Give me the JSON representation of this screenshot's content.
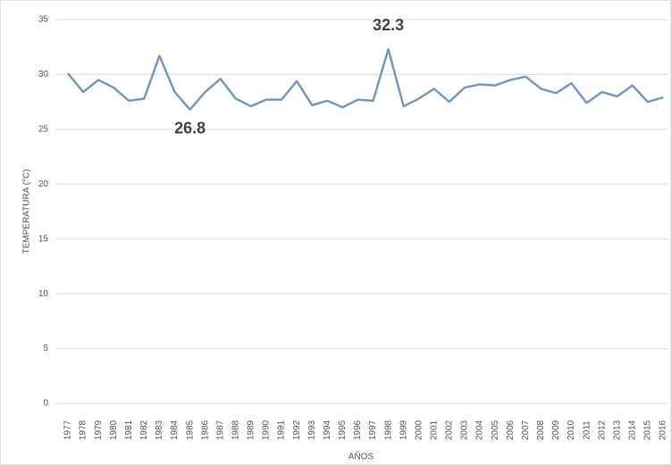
{
  "chart_data": {
    "type": "line",
    "y_label": "TEMPERATURA (°C)",
    "x_label": "AÑOS",
    "categories": [
      "1977",
      "1978",
      "1979",
      "1980",
      "1981",
      "1982",
      "1983",
      "1984",
      "1985",
      "1986",
      "1987",
      "1988",
      "1989",
      "1990",
      "1991",
      "1992",
      "1993",
      "1994",
      "1995",
      "1996",
      "1997",
      "1998",
      "1999",
      "2000",
      "2001",
      "2002",
      "2003",
      "2004",
      "2005",
      "2006",
      "2007",
      "2008",
      "2009",
      "2010",
      "2011",
      "2012",
      "2013",
      "2014",
      "2015",
      "2016"
    ],
    "values": [
      30.1,
      28.4,
      29.5,
      28.8,
      27.6,
      27.8,
      31.7,
      28.4,
      26.8,
      28.4,
      29.6,
      27.8,
      27.1,
      27.7,
      27.7,
      29.4,
      27.2,
      27.6,
      27.0,
      27.7,
      27.6,
      32.3,
      27.1,
      27.8,
      28.7,
      27.5,
      28.8,
      29.1,
      29.0,
      29.5,
      29.8,
      28.7,
      28.3,
      29.2,
      27.4,
      28.4,
      28.0,
      29.0,
      27.5,
      27.9
    ],
    "value_labels": [
      null,
      null,
      null,
      null,
      null,
      null,
      null,
      null,
      "26.8",
      null,
      null,
      null,
      null,
      null,
      null,
      null,
      null,
      null,
      null,
      null,
      null,
      "32.3",
      null,
      null,
      null,
      null,
      null,
      null,
      null,
      null,
      null,
      null,
      null,
      null,
      null,
      null,
      null,
      null,
      null,
      null
    ],
    "color": "#7399c6",
    "ylim": [
      0,
      35
    ],
    "yticks": [
      0,
      5,
      10,
      15,
      20,
      25,
      30,
      35
    ],
    "grid": true
  }
}
